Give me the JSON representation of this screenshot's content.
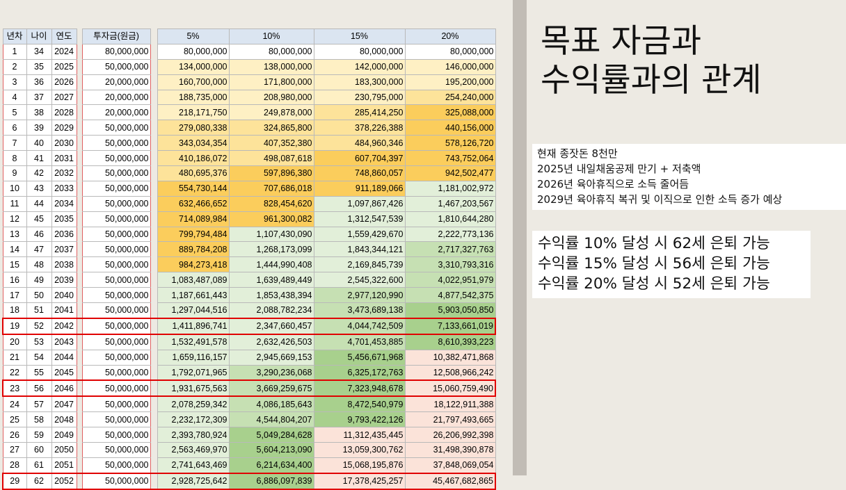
{
  "table": {
    "headers": [
      "년차",
      "나이",
      "연도",
      "투자금(원금)",
      "5%",
      "10%",
      "15%",
      "20%"
    ],
    "highlight_rows": [
      19,
      23,
      29
    ],
    "colors": {
      "white": "#ffffff",
      "yellow_light": "#fef0c4",
      "yellow_mid": "#fde39a",
      "yellow_dark": "#fbcd5c",
      "green_light": "#e2efd9",
      "green_mid": "#c6e0b3",
      "green_dark": "#a8d08d",
      "pink": "#fbe3d9",
      "header": "#dbe5f1",
      "highlight_border": "#e00000"
    },
    "rows": [
      {
        "n": "1",
        "age": "34",
        "year": "2024",
        "inv": "80,000,000",
        "r5": "80,000,000",
        "r10": "80,000,000",
        "r15": "80,000,000",
        "r20": "80,000,000",
        "c": [
          "white",
          "white",
          "white",
          "white"
        ]
      },
      {
        "n": "2",
        "age": "35",
        "year": "2025",
        "inv": "50,000,000",
        "r5": "134,000,000",
        "r10": "138,000,000",
        "r15": "142,000,000",
        "r20": "146,000,000",
        "c": [
          "yellow_light",
          "yellow_light",
          "yellow_light",
          "yellow_light"
        ]
      },
      {
        "n": "3",
        "age": "36",
        "year": "2026",
        "inv": "20,000,000",
        "r5": "160,700,000",
        "r10": "171,800,000",
        "r15": "183,300,000",
        "r20": "195,200,000",
        "c": [
          "yellow_light",
          "yellow_light",
          "yellow_light",
          "yellow_light"
        ]
      },
      {
        "n": "4",
        "age": "37",
        "year": "2027",
        "inv": "20,000,000",
        "r5": "188,735,000",
        "r10": "208,980,000",
        "r15": "230,795,000",
        "r20": "254,240,000",
        "c": [
          "yellow_light",
          "yellow_light",
          "yellow_light",
          "yellow_mid"
        ]
      },
      {
        "n": "5",
        "age": "38",
        "year": "2028",
        "inv": "20,000,000",
        "r5": "218,171,750",
        "r10": "249,878,000",
        "r15": "285,414,250",
        "r20": "325,088,000",
        "c": [
          "yellow_light",
          "yellow_light",
          "yellow_mid",
          "yellow_dark"
        ]
      },
      {
        "n": "6",
        "age": "39",
        "year": "2029",
        "inv": "50,000,000",
        "r5": "279,080,338",
        "r10": "324,865,800",
        "r15": "378,226,388",
        "r20": "440,156,000",
        "c": [
          "yellow_mid",
          "yellow_mid",
          "yellow_mid",
          "yellow_dark"
        ]
      },
      {
        "n": "7",
        "age": "40",
        "year": "2030",
        "inv": "50,000,000",
        "r5": "343,034,354",
        "r10": "407,352,380",
        "r15": "484,960,346",
        "r20": "578,126,720",
        "c": [
          "yellow_mid",
          "yellow_mid",
          "yellow_mid",
          "yellow_dark"
        ]
      },
      {
        "n": "8",
        "age": "41",
        "year": "2031",
        "inv": "50,000,000",
        "r5": "410,186,072",
        "r10": "498,087,618",
        "r15": "607,704,397",
        "r20": "743,752,064",
        "c": [
          "yellow_mid",
          "yellow_mid",
          "yellow_dark",
          "yellow_dark"
        ]
      },
      {
        "n": "9",
        "age": "42",
        "year": "2032",
        "inv": "50,000,000",
        "r5": "480,695,376",
        "r10": "597,896,380",
        "r15": "748,860,057",
        "r20": "942,502,477",
        "c": [
          "yellow_mid",
          "yellow_dark",
          "yellow_dark",
          "yellow_dark"
        ]
      },
      {
        "n": "10",
        "age": "43",
        "year": "2033",
        "inv": "50,000,000",
        "r5": "554,730,144",
        "r10": "707,686,018",
        "r15": "911,189,066",
        "r20": "1,181,002,972",
        "c": [
          "yellow_dark",
          "yellow_dark",
          "yellow_dark",
          "green_light"
        ]
      },
      {
        "n": "11",
        "age": "44",
        "year": "2034",
        "inv": "50,000,000",
        "r5": "632,466,652",
        "r10": "828,454,620",
        "r15": "1,097,867,426",
        "r20": "1,467,203,567",
        "c": [
          "yellow_dark",
          "yellow_dark",
          "green_light",
          "green_light"
        ]
      },
      {
        "n": "12",
        "age": "45",
        "year": "2035",
        "inv": "50,000,000",
        "r5": "714,089,984",
        "r10": "961,300,082",
        "r15": "1,312,547,539",
        "r20": "1,810,644,280",
        "c": [
          "yellow_dark",
          "yellow_dark",
          "green_light",
          "green_light"
        ]
      },
      {
        "n": "13",
        "age": "46",
        "year": "2036",
        "inv": "50,000,000",
        "r5": "799,794,484",
        "r10": "1,107,430,090",
        "r15": "1,559,429,670",
        "r20": "2,222,773,136",
        "c": [
          "yellow_dark",
          "green_light",
          "green_light",
          "green_light"
        ]
      },
      {
        "n": "14",
        "age": "47",
        "year": "2037",
        "inv": "50,000,000",
        "r5": "889,784,208",
        "r10": "1,268,173,099",
        "r15": "1,843,344,121",
        "r20": "2,717,327,763",
        "c": [
          "yellow_dark",
          "green_light",
          "green_light",
          "green_mid"
        ]
      },
      {
        "n": "15",
        "age": "48",
        "year": "2038",
        "inv": "50,000,000",
        "r5": "984,273,418",
        "r10": "1,444,990,408",
        "r15": "2,169,845,739",
        "r20": "3,310,793,316",
        "c": [
          "yellow_dark",
          "green_light",
          "green_light",
          "green_mid"
        ]
      },
      {
        "n": "16",
        "age": "49",
        "year": "2039",
        "inv": "50,000,000",
        "r5": "1,083,487,089",
        "r10": "1,639,489,449",
        "r15": "2,545,322,600",
        "r20": "4,022,951,979",
        "c": [
          "green_light",
          "green_light",
          "green_light",
          "green_mid"
        ]
      },
      {
        "n": "17",
        "age": "50",
        "year": "2040",
        "inv": "50,000,000",
        "r5": "1,187,661,443",
        "r10": "1,853,438,394",
        "r15": "2,977,120,990",
        "r20": "4,877,542,375",
        "c": [
          "green_light",
          "green_light",
          "green_mid",
          "green_mid"
        ]
      },
      {
        "n": "18",
        "age": "51",
        "year": "2041",
        "inv": "50,000,000",
        "r5": "1,297,044,516",
        "r10": "2,088,782,234",
        "r15": "3,473,689,138",
        "r20": "5,903,050,850",
        "c": [
          "green_light",
          "green_light",
          "green_mid",
          "green_dark"
        ]
      },
      {
        "n": "19",
        "age": "52",
        "year": "2042",
        "inv": "50,000,000",
        "r5": "1,411,896,741",
        "r10": "2,347,660,457",
        "r15": "4,044,742,509",
        "r20": "7,133,661,019",
        "c": [
          "green_light",
          "green_light",
          "green_mid",
          "green_dark"
        ]
      },
      {
        "n": "20",
        "age": "53",
        "year": "2043",
        "inv": "50,000,000",
        "r5": "1,532,491,578",
        "r10": "2,632,426,503",
        "r15": "4,701,453,885",
        "r20": "8,610,393,223",
        "c": [
          "green_light",
          "green_light",
          "green_mid",
          "green_dark"
        ]
      },
      {
        "n": "21",
        "age": "54",
        "year": "2044",
        "inv": "50,000,000",
        "r5": "1,659,116,157",
        "r10": "2,945,669,153",
        "r15": "5,456,671,968",
        "r20": "10,382,471,868",
        "c": [
          "green_light",
          "green_light",
          "green_dark",
          "pink"
        ]
      },
      {
        "n": "22",
        "age": "55",
        "year": "2045",
        "inv": "50,000,000",
        "r5": "1,792,071,965",
        "r10": "3,290,236,068",
        "r15": "6,325,172,763",
        "r20": "12,508,966,242",
        "c": [
          "green_light",
          "green_mid",
          "green_dark",
          "pink"
        ]
      },
      {
        "n": "23",
        "age": "56",
        "year": "2046",
        "inv": "50,000,000",
        "r5": "1,931,675,563",
        "r10": "3,669,259,675",
        "r15": "7,323,948,678",
        "r20": "15,060,759,490",
        "c": [
          "green_light",
          "green_mid",
          "green_dark",
          "pink"
        ]
      },
      {
        "n": "24",
        "age": "57",
        "year": "2047",
        "inv": "50,000,000",
        "r5": "2,078,259,342",
        "r10": "4,086,185,643",
        "r15": "8,472,540,979",
        "r20": "18,122,911,388",
        "c": [
          "green_light",
          "green_mid",
          "green_dark",
          "pink"
        ]
      },
      {
        "n": "25",
        "age": "58",
        "year": "2048",
        "inv": "50,000,000",
        "r5": "2,232,172,309",
        "r10": "4,544,804,207",
        "r15": "9,793,422,126",
        "r20": "21,797,493,665",
        "c": [
          "green_light",
          "green_mid",
          "green_dark",
          "pink"
        ]
      },
      {
        "n": "26",
        "age": "59",
        "year": "2049",
        "inv": "50,000,000",
        "r5": "2,393,780,924",
        "r10": "5,049,284,628",
        "r15": "11,312,435,445",
        "r20": "26,206,992,398",
        "c": [
          "green_light",
          "green_dark",
          "pink",
          "pink"
        ]
      },
      {
        "n": "27",
        "age": "60",
        "year": "2050",
        "inv": "50,000,000",
        "r5": "2,563,469,970",
        "r10": "5,604,213,090",
        "r15": "13,059,300,762",
        "r20": "31,498,390,878",
        "c": [
          "green_light",
          "green_dark",
          "pink",
          "pink"
        ]
      },
      {
        "n": "28",
        "age": "61",
        "year": "2051",
        "inv": "50,000,000",
        "r5": "2,741,643,469",
        "r10": "6,214,634,400",
        "r15": "15,068,195,876",
        "r20": "37,848,069,054",
        "c": [
          "green_light",
          "green_dark",
          "pink",
          "pink"
        ]
      },
      {
        "n": "29",
        "age": "62",
        "year": "2052",
        "inv": "50,000,000",
        "r5": "2,928,725,642",
        "r10": "6,886,097,839",
        "r15": "17,378,425,257",
        "r20": "45,467,682,865",
        "c": [
          "green_light",
          "green_dark",
          "pink",
          "pink"
        ]
      }
    ]
  },
  "title": {
    "line1": "목표 자금과",
    "line2": "수익률과의 관계"
  },
  "notes": [
    "현재 종잣돈 8천만",
    "2025년 내일채움공제 만기 + 저축액",
    "2026년 육아휴직으로 소득 줄어듬",
    "2029년 육아휴직 복귀 및 이직으로 인한 소득 증가 예상"
  ],
  "goals": [
    "수익률 10% 달성 시 62세 은퇴 가능",
    "수익률 15% 달성 시 56세 은퇴 가능",
    "수익률 20% 달성 시 52세 은퇴 가능"
  ]
}
